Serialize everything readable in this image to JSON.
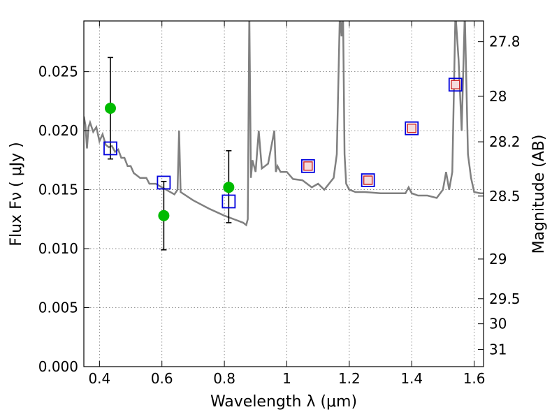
{
  "chart_data": {
    "type": "line",
    "xlabel": "Wavelength  λ (μm)",
    "ylabel_left": "Flux  Fν  ( μJy )",
    "ylabel_right": "Magnitude (AB)",
    "xlim": [
      0.35,
      1.63
    ],
    "ylim": [
      0.0,
      0.0293
    ],
    "grid": true,
    "x_ticks": [
      0.4,
      0.6,
      0.8,
      1.0,
      1.2,
      1.4,
      1.6
    ],
    "x_tick_labels": [
      "0.4",
      "0.6",
      "0.8",
      "1",
      "1.2",
      "1.4",
      "1.6"
    ],
    "y_ticks": [
      0.0,
      0.005,
      0.01,
      0.015,
      0.02,
      0.025
    ],
    "y_tick_labels": [
      "0.000",
      "0.005",
      "0.010",
      "0.015",
      "0.020",
      "0.025"
    ],
    "mag_ticks": [
      27.8,
      28,
      28.2,
      28.5,
      29,
      29.5,
      30,
      31
    ],
    "mag_tick_labels": [
      "27.8",
      "28",
      "28.2",
      "28.5",
      "29",
      "29.5",
      "30",
      "31"
    ],
    "colors": {
      "model": "#808080",
      "observed": "#00bb00",
      "model_band": "#0000dd",
      "model_band_inner": "#cc2222",
      "errorbar": "#000000"
    },
    "series": [
      {
        "kind": "model-spectrum",
        "x": [
          0.35,
          0.355,
          0.36,
          0.365,
          0.37,
          0.38,
          0.39,
          0.4,
          0.41,
          0.42,
          0.43,
          0.44,
          0.45,
          0.46,
          0.47,
          0.48,
          0.49,
          0.5,
          0.51,
          0.52,
          0.53,
          0.54,
          0.55,
          0.56,
          0.58,
          0.6,
          0.62,
          0.64,
          0.65,
          0.655,
          0.66,
          0.7,
          0.75,
          0.8,
          0.84,
          0.86,
          0.87,
          0.875,
          0.88,
          0.885,
          0.89,
          0.9,
          0.91,
          0.92,
          0.94,
          0.96,
          0.965,
          0.97,
          0.98,
          1.0,
          1.02,
          1.05,
          1.08,
          1.1,
          1.12,
          1.15,
          1.16,
          1.17,
          1.175,
          1.18,
          1.185,
          1.19,
          1.2,
          1.22,
          1.25,
          1.3,
          1.35,
          1.38,
          1.39,
          1.4,
          1.42,
          1.45,
          1.48,
          1.5,
          1.51,
          1.52,
          1.53,
          1.54,
          1.55,
          1.56,
          1.57,
          1.58,
          1.59,
          1.6,
          1.62,
          1.63
        ],
        "y": [
          0.0212,
          0.0205,
          0.0185,
          0.0203,
          0.0207,
          0.0199,
          0.0203,
          0.0191,
          0.0197,
          0.0188,
          0.0186,
          0.0187,
          0.0182,
          0.0184,
          0.0177,
          0.0177,
          0.017,
          0.017,
          0.0164,
          0.0162,
          0.016,
          0.016,
          0.016,
          0.0155,
          0.0155,
          0.0152,
          0.0149,
          0.0146,
          0.015,
          0.02,
          0.0148,
          0.0141,
          0.0134,
          0.0128,
          0.0124,
          0.0122,
          0.012,
          0.0125,
          0.03,
          0.016,
          0.0175,
          0.0165,
          0.02,
          0.0168,
          0.0172,
          0.02,
          0.0165,
          0.017,
          0.0165,
          0.0165,
          0.0159,
          0.0158,
          0.0152,
          0.0155,
          0.015,
          0.016,
          0.018,
          0.03,
          0.028,
          0.03,
          0.018,
          0.0155,
          0.015,
          0.0148,
          0.0148,
          0.0147,
          0.0147,
          0.0147,
          0.0152,
          0.0147,
          0.0145,
          0.0145,
          0.0143,
          0.015,
          0.0165,
          0.015,
          0.0165,
          0.03,
          0.026,
          0.02,
          0.03,
          0.018,
          0.016,
          0.0148,
          0.0147,
          0.0147
        ]
      },
      {
        "kind": "observed-photometry",
        "x": [
          0.435,
          0.606,
          0.814
        ],
        "y": [
          0.0219,
          0.0128,
          0.0152
        ],
        "yerr_low": [
          0.0176,
          0.0099,
          0.0122
        ],
        "yerr_high": [
          0.0262,
          0.0157,
          0.0183
        ]
      },
      {
        "kind": "model-photometry",
        "x": [
          0.435,
          0.606,
          0.814,
          1.068,
          1.26,
          1.4,
          1.54
        ],
        "y": [
          0.0185,
          0.0156,
          0.014,
          0.017,
          0.0158,
          0.0202,
          0.0239
        ]
      }
    ]
  }
}
